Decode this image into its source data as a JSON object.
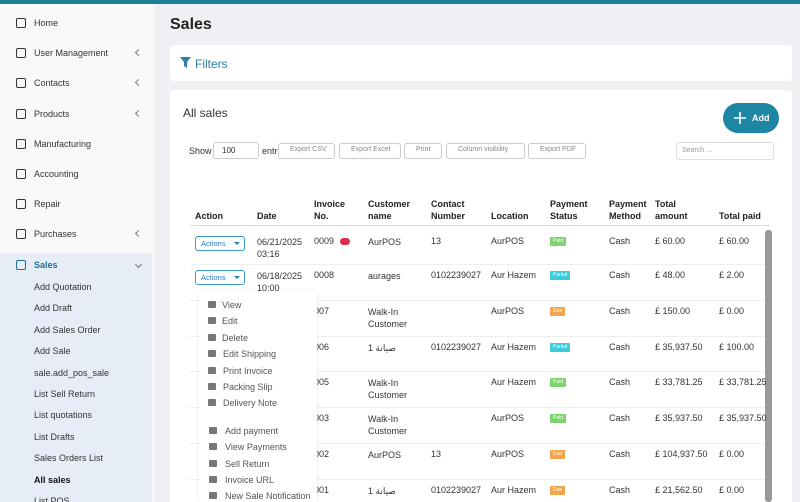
{
  "sidebar": {
    "items": [
      {
        "label": "Home"
      },
      {
        "label": "User Management",
        "chevron": "left"
      },
      {
        "label": "Contacts",
        "chevron": "left"
      },
      {
        "label": "Products",
        "chevron": "left"
      },
      {
        "label": "Manufacturing"
      },
      {
        "label": "Accounting"
      },
      {
        "label": "Repair"
      },
      {
        "label": "Purchases",
        "chevron": "left"
      },
      {
        "label": "Sales",
        "chevron": "down",
        "active": true
      }
    ],
    "subitems": [
      {
        "label": "Add Quotation"
      },
      {
        "label": "Add Draft"
      },
      {
        "label": "Add Sales Order"
      },
      {
        "label": "Add Sale"
      },
      {
        "label": "sale.add_pos_sale"
      },
      {
        "label": "List Sell Return"
      },
      {
        "label": "List quotations"
      },
      {
        "label": "List Drafts"
      },
      {
        "label": "Sales Orders List"
      },
      {
        "label": "All sales",
        "active": true
      },
      {
        "label": "List POS"
      }
    ]
  },
  "header": {
    "title": "Sales"
  },
  "filters": {
    "title": "Filters"
  },
  "card": {
    "title": "All sales",
    "add_button": "Add",
    "show_label": "Show",
    "page_size": "100",
    "entries_label": "entri",
    "buttons": [
      "Export CSV",
      "Export Excel",
      "Print",
      "Column visibility",
      "Export PDF"
    ],
    "search_placeholder": "Search ..."
  },
  "table": {
    "columns": [
      "Action",
      "Date",
      "Invoice No.",
      "Customer name",
      "Contact Number",
      "Location",
      "Payment Status",
      "Payment Method",
      "Total amount",
      "Total paid"
    ],
    "rows": [
      {
        "action": "Actions",
        "date": "06/21/2025 03:16",
        "invoice": "0009",
        "customer": "AurPOS",
        "contact": "13",
        "location": "AurPOS",
        "status": "Paid",
        "status_color": "#7fd36e",
        "method": "Cash",
        "total": "£ 60.00",
        "paid": "£ 60.00"
      },
      {
        "action": "Actions",
        "date": "06/18/2025 10:00",
        "invoice": "0008",
        "customer": "aurages",
        "contact": "0102239027",
        "location": "Aur Hazem",
        "status": "Partial",
        "status_color": "#3cc9d9",
        "method": "Cash",
        "total": "£ 48.00",
        "paid": "£ 2.00"
      },
      {
        "invoice": "007",
        "customer": "Walk-In Customer",
        "contact": null,
        "location": "AurPOS",
        "status": "Due",
        "status_color": "#f2a54a",
        "method": "Cash",
        "total": "£ 150.00",
        "paid": "£ 0.00"
      },
      {
        "invoice": "006",
        "customer": "صيانة 1",
        "contact": "0102239027",
        "location": "Aur Hazem",
        "status": "Partial",
        "status_color": "#3cc9d9",
        "method": "Cash",
        "total": "£ 35,937.50",
        "paid": "£ 100.00"
      },
      {
        "invoice": "005",
        "customer": "Walk-In Customer",
        "contact": null,
        "location": "Aur Hazem",
        "status": "Paid",
        "status_color": "#7fd36e",
        "method": "Cash",
        "total": "£ 33,781.25",
        "paid": "£ 33,781.25"
      },
      {
        "invoice": "003",
        "customer": "Walk-In Customer",
        "contact": null,
        "location": "AurPOS",
        "status": "Paid",
        "status_color": "#7fd36e",
        "method": "Cash",
        "total": "£ 35,937.50",
        "paid": "£ 35,937.50"
      },
      {
        "invoice": "002",
        "customer": "AurPOS",
        "contact": "13",
        "location": "AurPOS",
        "status": "Due",
        "status_color": "#f2a54a",
        "method": "Cash",
        "total": "£ 104,937.50",
        "paid": "£ 0.00"
      },
      {
        "invoice": "001",
        "customer": "صيانة 1",
        "contact": "0102239027",
        "location": "Aur Hazem",
        "status": "Due",
        "status_color": "#f2a54a",
        "method": "Cash",
        "total": "£ 21,562.50",
        "paid": "£ 0.00"
      }
    ]
  },
  "dropdown": {
    "items": [
      "View",
      "Edit",
      "Delete",
      "Edit Shipping",
      "Print Invoice",
      "Packing Slip",
      "Delivery Note",
      "Add payment",
      "View Payments",
      "Sell Return",
      "Invoice URL",
      "New Sale Notification"
    ]
  }
}
